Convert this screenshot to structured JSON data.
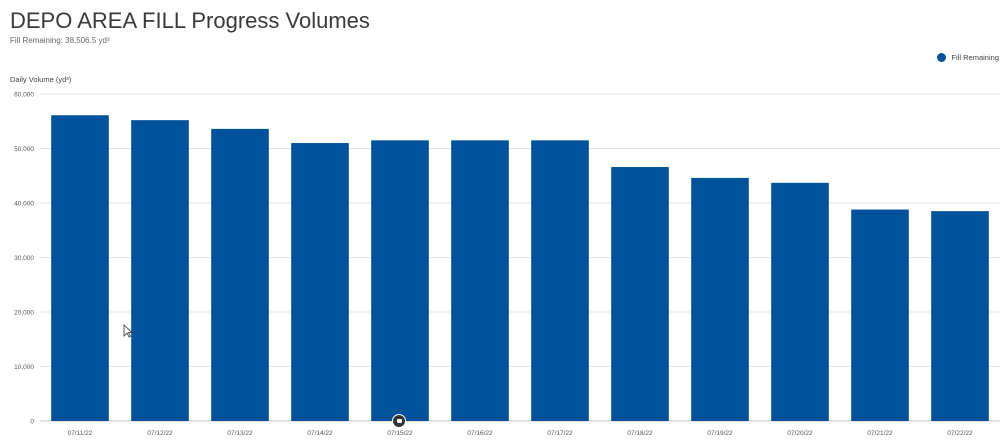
{
  "page": {
    "title": "DEPO AREA FILL Progress Volumes",
    "subtitle": "Fill Remaining: 38,506.5 yd³"
  },
  "colors": {
    "bar": "#02519b",
    "grid": "#e6e6e6",
    "axis": "#c8c8c8"
  },
  "icons": {
    "cursor": "mouse-pointer-icon",
    "marker": "calendar-marker-icon"
  },
  "chart_data": {
    "type": "bar",
    "title": "DEPO AREA FILL Progress Volumes",
    "subtitle": "Fill Remaining: 38,506.5 yd³",
    "ylabel": "Daily Volume (yd³)",
    "xlabel": "",
    "ylim": [
      0,
      60000
    ],
    "yticks": [
      0,
      10000,
      20000,
      30000,
      40000,
      50000,
      60000
    ],
    "ytick_labels": [
      "0",
      "10,000",
      "20,000",
      "30,000",
      "40,000",
      "50,000",
      "60,000"
    ],
    "grid": true,
    "legend_position": "top-right",
    "categories": [
      "07/11/22",
      "07/12/22",
      "07/13/22",
      "07/14/22",
      "07/15/22",
      "07/16/22",
      "07/17/22",
      "07/18/22",
      "07/19/22",
      "07/20/22",
      "07/21/22",
      "07/22/22"
    ],
    "series": [
      {
        "name": "Fill Remaining",
        "color": "#02519b",
        "values": [
          56100,
          55200,
          53600,
          51000,
          51500,
          51500,
          51500,
          46600,
          44600,
          43700,
          38800,
          38506.5
        ]
      }
    ]
  }
}
